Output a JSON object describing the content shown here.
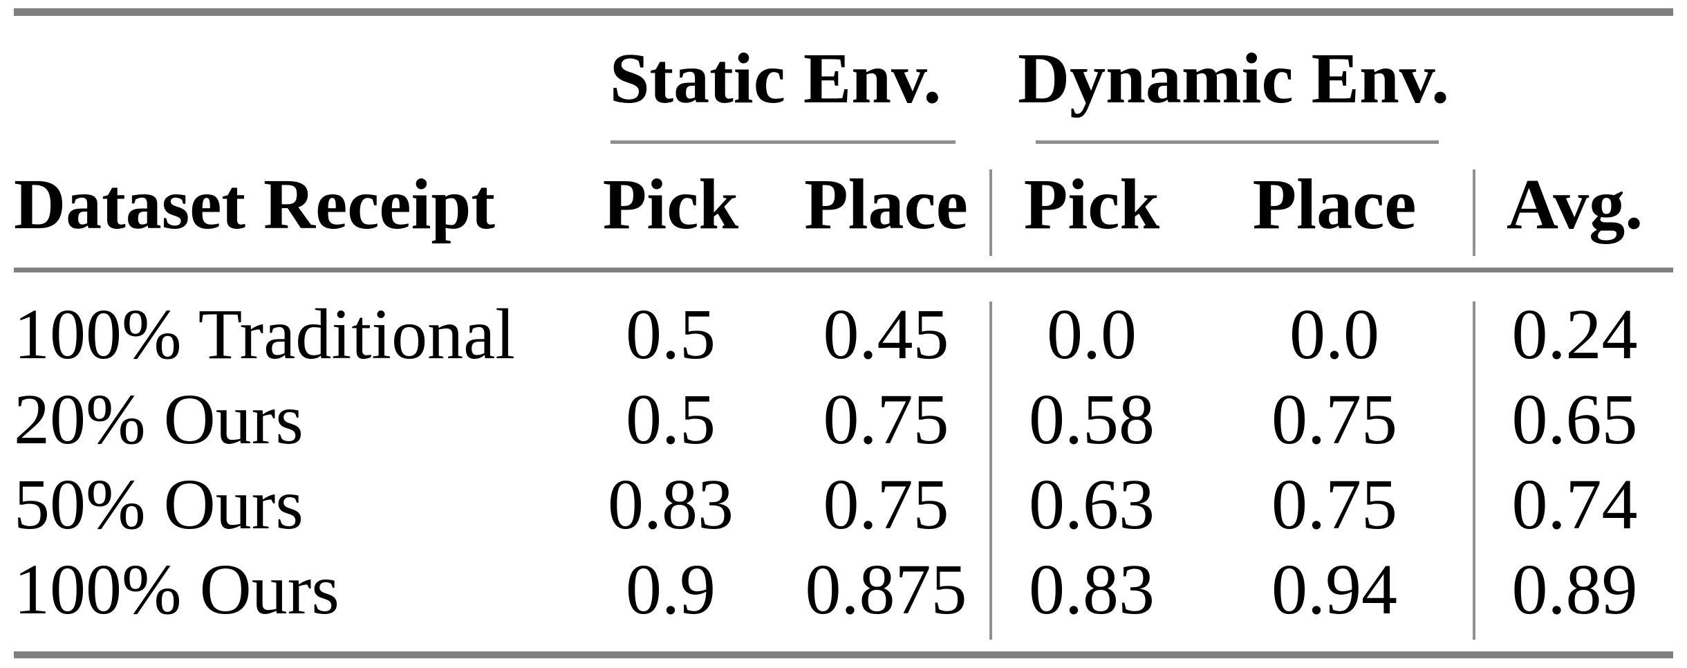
{
  "table": {
    "header": {
      "dataset_col": "Dataset Receipt",
      "groups": [
        {
          "label": "Static Env.",
          "cols": [
            "Pick",
            "Place"
          ]
        },
        {
          "label": "Dynamic Env.",
          "cols": [
            "Pick",
            "Place"
          ]
        }
      ],
      "avg_col": "Avg."
    },
    "rows": [
      {
        "label": "100% Traditional",
        "values": [
          "0.5",
          "0.45",
          "0.0",
          "0.0",
          "0.24"
        ]
      },
      {
        "label": "20% Ours",
        "values": [
          "0.5",
          "0.75",
          "0.58",
          "0.75",
          "0.65"
        ]
      },
      {
        "label": "50% Ours",
        "values": [
          "0.83",
          "0.75",
          "0.63",
          "0.75",
          "0.74"
        ]
      },
      {
        "label": "100% Ours",
        "values": [
          "0.9",
          "0.875",
          "0.83",
          "0.94",
          "0.89"
        ]
      }
    ]
  },
  "chart_data": {
    "type": "table",
    "title": "",
    "columns": [
      "Dataset Receipt",
      "Static Env. Pick",
      "Static Env. Place",
      "Dynamic Env. Pick",
      "Dynamic Env. Place",
      "Avg."
    ],
    "rows": [
      [
        "100% Traditional",
        0.5,
        0.45,
        0.0,
        0.0,
        0.24
      ],
      [
        "20% Ours",
        0.5,
        0.75,
        0.58,
        0.75,
        0.65
      ],
      [
        "50% Ours",
        0.83,
        0.75,
        0.63,
        0.75,
        0.74
      ],
      [
        "100% Ours",
        0.9,
        0.875,
        0.83,
        0.94,
        0.89
      ]
    ]
  },
  "colors": {
    "thick_rule": "#7f7f7f",
    "thin_rule": "#909090",
    "text": "#000000",
    "background": "#ffffff"
  }
}
